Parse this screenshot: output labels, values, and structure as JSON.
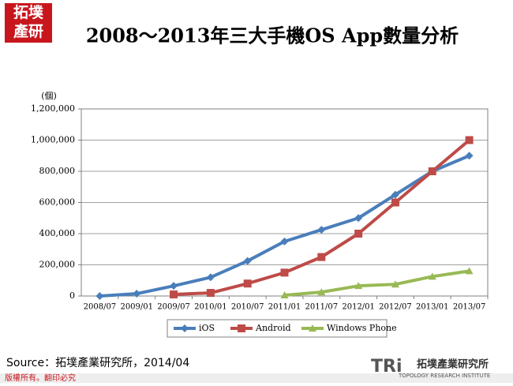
{
  "logo": [
    "拓墣",
    "產研"
  ],
  "chart_data": {
    "type": "line",
    "title": "2008～2013年三大手機OS App數量分析",
    "y_unit": "(個)",
    "categories": [
      "2008/07",
      "2009/01",
      "2009/07",
      "2010/01",
      "2010/07",
      "2011/01",
      "2011/07",
      "2012/01",
      "2012/07",
      "2013/01",
      "2013/07"
    ],
    "series": [
      {
        "name": "iOS",
        "color": "#4a7ebb",
        "values": [
          0,
          15000,
          65000,
          120000,
          225000,
          350000,
          425000,
          500000,
          650000,
          800000,
          900000
        ]
      },
      {
        "name": "Android",
        "color": "#be4b48",
        "values": [
          null,
          null,
          10000,
          20000,
          80000,
          150000,
          250000,
          400000,
          600000,
          800000,
          1000000
        ]
      },
      {
        "name": "Windows Phone",
        "color": "#98b954",
        "values": [
          null,
          null,
          null,
          null,
          null,
          5000,
          25000,
          65000,
          75000,
          125000,
          160000
        ]
      }
    ],
    "ylim": [
      0,
      1200000
    ],
    "yticks": [
      0,
      {
        "value": 200000,
        "label": "200,000"
      },
      {
        "value": 400000,
        "label": "400,000"
      },
      {
        "value": 600000,
        "label": "600,000"
      },
      {
        "value": 800000,
        "label": "800,000"
      },
      {
        "value": 1000000,
        "label": "1,000,000"
      },
      {
        "value": 1200000,
        "label": "1,200,000"
      }
    ],
    "grid": true,
    "legend": "bottom"
  },
  "source": "Source：拓墣產業研究所，2014/04",
  "footer": "版權所有。翻印必究",
  "brand": {
    "mark": "TRi",
    "name": "拓墣產業研究所",
    "english": "TOPOLOGY RESEARCH INSTITUTE"
  }
}
